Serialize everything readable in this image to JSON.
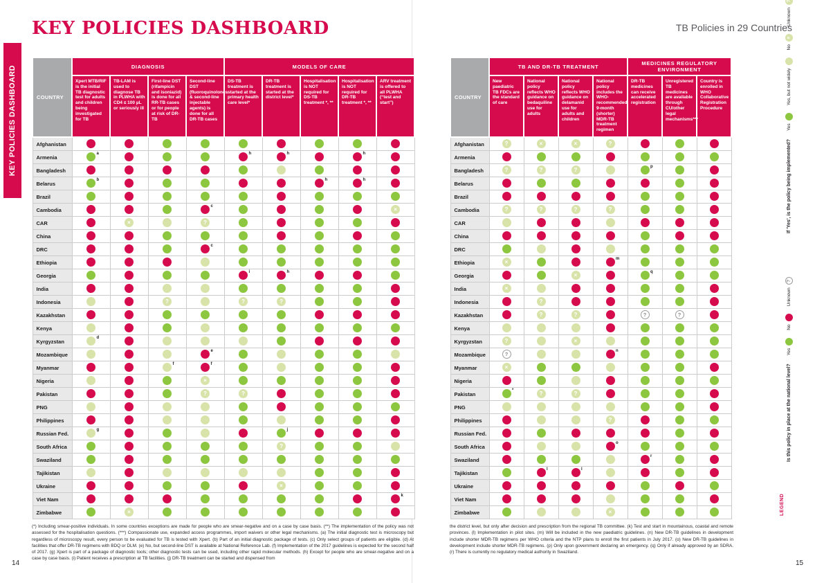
{
  "page": {
    "title": "KEY POLICIES DASHBOARD",
    "subtitle": "TB Policies in 29 Countries",
    "sidebar_label": "KEY POLICIES DASHBOARD",
    "page_number_left": "14",
    "page_number_right": "15"
  },
  "colors": {
    "crimson_no": "#d60b4e",
    "green_yes": "#8dc63f",
    "pale_green_partial": "#d7e3a8",
    "header_gray": "#a8aaac",
    "row_gray": "#e9e9e9"
  },
  "legend": {
    "label": "LEGEND",
    "implemented": {
      "question": "If 'Yes', is the policy being implemented?",
      "items": [
        {
          "code": "G",
          "label": "Yes"
        },
        {
          "code": "L",
          "label": "Yes, but not widely"
        },
        {
          "code": "LX",
          "label": "No"
        },
        {
          "code": "LQ",
          "label": "Unknown"
        }
      ]
    },
    "national": {
      "question": "Is this policy in place at the national level?",
      "items": [
        {
          "code": "G",
          "label": "Yes"
        },
        {
          "code": "R",
          "label": "No"
        },
        {
          "code": "Q",
          "label": "Unknown"
        }
      ]
    }
  },
  "left_table": {
    "country_header": "COUNTRY",
    "groups": [
      {
        "label": "DIAGNOSIS",
        "span": 4
      },
      {
        "label": "MODELS OF CARE",
        "span": 5
      }
    ],
    "columns": [
      "Xpert MTB/RIF is the initial TB diagnostic test for adults and children being investigated for TB",
      "TB-LAM is used to diagnose TB in PLWHA with CD4 ≤ 100 µL or seriously ill",
      "First-line DST (rifampicin and isoniazid) is done for all RR-TB cases or for people at risk of DR-TB",
      "Second-line DST (fluoroquinolones & second-line injectable agents) is done for all DR-TB cases",
      "DS-TB treatment is started at the primary health care level*",
      "DR-TB treatment is started at the district level*",
      "Hospitalisation is NOT required for DS-TB treatment *, **",
      "Hospitalisation is NOT required for DR-TB treatment *, **",
      "ARV treatment is offered to all PLWHA (“test and start”)"
    ],
    "rows": [
      {
        "country": "Afghanistan",
        "cells": [
          "R",
          "R",
          "G",
          "G",
          "G",
          "R",
          "G",
          "G",
          "R"
        ]
      },
      {
        "country": "Armenia",
        "cells": [
          "G:a",
          "R",
          "G",
          "G",
          "R:h",
          "R:h",
          "R",
          "R:h",
          "R"
        ]
      },
      {
        "country": "Bangladesh",
        "cells": [
          "R",
          "R",
          "R",
          "R",
          "G",
          "L",
          "G",
          "R",
          "R"
        ]
      },
      {
        "country": "Belarus",
        "cells": [
          "G:b",
          "R",
          "G",
          "G",
          "R",
          "R",
          "R:h",
          "R:h",
          "R"
        ]
      },
      {
        "country": "Brazil",
        "cells": [
          "G",
          "R",
          "G",
          "G",
          "G",
          "R",
          "G",
          "G",
          "G"
        ]
      },
      {
        "country": "Cambodia",
        "cells": [
          "R",
          "R",
          "G",
          "R:c",
          "G",
          "R",
          "G",
          "R",
          "LX"
        ]
      },
      {
        "country": "CAR",
        "cells": [
          "R",
          "LX",
          "L",
          "LQ",
          "G",
          "R",
          "G",
          "G",
          "R"
        ]
      },
      {
        "country": "China",
        "cells": [
          "R",
          "R",
          "G",
          "G",
          "G",
          "R",
          "G",
          "R",
          "G"
        ]
      },
      {
        "country": "DRC",
        "cells": [
          "R",
          "R",
          "G",
          "R:c",
          "G",
          "G",
          "G",
          "G",
          "G"
        ]
      },
      {
        "country": "Ethiopia",
        "cells": [
          "R",
          "R",
          "R",
          "L",
          "G",
          "G",
          "G",
          "G",
          "G"
        ]
      },
      {
        "country": "Georgia",
        "cells": [
          "G",
          "R",
          "G",
          "G",
          "R:i",
          "R:h",
          "R",
          "R",
          "G"
        ]
      },
      {
        "country": "India",
        "cells": [
          "R",
          "R",
          "L",
          "L",
          "G",
          "G",
          "G",
          "G",
          "R"
        ]
      },
      {
        "country": "Indonesia",
        "cells": [
          "L",
          "R",
          "LQ",
          "L",
          "LQ",
          "LQ",
          "G",
          "G",
          "R"
        ]
      },
      {
        "country": "Kazakhstan",
        "cells": [
          "R",
          "R",
          "G",
          "G",
          "G",
          "G",
          "R",
          "R",
          "R"
        ]
      },
      {
        "country": "Kenya",
        "cells": [
          "L",
          "R",
          "G",
          "L",
          "G",
          "G",
          "G",
          "G",
          "G"
        ]
      },
      {
        "country": "Kyrgyzstan",
        "cells": [
          "L:d",
          "R",
          "L",
          "L",
          "L",
          "G",
          "R",
          "R",
          "R"
        ]
      },
      {
        "country": "Mozambique",
        "cells": [
          "L",
          "R",
          "L",
          "R:e",
          "G",
          "L",
          "G",
          "G",
          "L"
        ]
      },
      {
        "country": "Myanmar",
        "cells": [
          "R",
          "R",
          "L:f",
          "R:f",
          "G",
          "L",
          "G",
          "G",
          "R"
        ]
      },
      {
        "country": "Nigeria",
        "cells": [
          "L",
          "R",
          "G",
          "LX",
          "G",
          "G",
          "G",
          "G",
          "R"
        ]
      },
      {
        "country": "Pakistan",
        "cells": [
          "R",
          "R",
          "G",
          "LQ",
          "LQ",
          "R",
          "G",
          "G",
          "R"
        ]
      },
      {
        "country": "PNG",
        "cells": [
          "L",
          "R",
          "L",
          "L",
          "G",
          "R",
          "G",
          "G",
          "G"
        ]
      },
      {
        "country": "Philippines",
        "cells": [
          "R",
          "R",
          "L",
          "L",
          "G",
          "L",
          "G",
          "G",
          "R"
        ]
      },
      {
        "country": "Russian Fed.",
        "cells": [
          "L:g",
          "R",
          "G",
          "L",
          "R",
          "G:j",
          "R",
          "R",
          "R"
        ]
      },
      {
        "country": "South Africa",
        "cells": [
          "G",
          "R",
          "G",
          "G",
          "G",
          "LQ",
          "G",
          "G",
          "L"
        ]
      },
      {
        "country": "Swaziland",
        "cells": [
          "G",
          "R",
          "G",
          "G",
          "G",
          "G",
          "G",
          "G",
          "G"
        ]
      },
      {
        "country": "Tajikistan",
        "cells": [
          "L",
          "R",
          "L",
          "L",
          "L",
          "L",
          "G",
          "G",
          "R"
        ]
      },
      {
        "country": "Ukraine",
        "cells": [
          "R",
          "R",
          "G",
          "G",
          "R",
          "LX",
          "G",
          "G",
          "R"
        ]
      },
      {
        "country": "Viet Nam",
        "cells": [
          "R",
          "R",
          "R",
          "G",
          "G",
          "G",
          "G",
          "R",
          "R:k"
        ]
      },
      {
        "country": "Zimbabwe",
        "cells": [
          "G",
          "LX",
          "G",
          "G",
          "G",
          "G",
          "G",
          "G",
          "R"
        ]
      }
    ]
  },
  "right_table": {
    "country_header": "COUNTRY",
    "groups": [
      {
        "label": "TB AND DR-TB TREATMENT",
        "span": 4
      },
      {
        "label": "MEDICINES REGULATORY ENVIRONMENT",
        "span": 3
      }
    ],
    "columns": [
      "New paediatric TB FDCs are the standard of care",
      "National policy reflects WHO guidance on bedaquiline use for adults",
      "National policy reflects WHO guidance on delamanid use for adults and children",
      "National policy includes the WHO-recommended, 9-month (shorter) MDR-TB treatment regimen",
      "DR-TB medicines can receive accelerated registration",
      "Unregistered TB medicines are available through CU/other legal mechanisms***",
      "Country is enrolled in WHO Collaborative Registration Procedure"
    ],
    "rows": [
      {
        "country": "Afghanistan",
        "cells": [
          "LQ",
          "LX",
          "LX",
          "LQ",
          "R",
          "G",
          "R"
        ]
      },
      {
        "country": "Armenia",
        "cells": [
          "R",
          "G",
          "G",
          "R",
          "G",
          "G",
          "G"
        ]
      },
      {
        "country": "Bangladesh",
        "cells": [
          "LQ",
          "LQ",
          "LQ",
          "L",
          "G:p",
          "G",
          "R"
        ]
      },
      {
        "country": "Belarus",
        "cells": [
          "R",
          "G",
          "G",
          "R",
          "R",
          "G",
          "R"
        ]
      },
      {
        "country": "Brazil",
        "cells": [
          "R",
          "R",
          "R",
          "R",
          "G",
          "G",
          "R"
        ]
      },
      {
        "country": "Cambodia",
        "cells": [
          "LQ",
          "LQ",
          "LQ",
          "LQ",
          "G",
          "G",
          "R"
        ]
      },
      {
        "country": "CAR",
        "cells": [
          "L",
          "R",
          "R",
          "L",
          "R",
          "R",
          "R"
        ]
      },
      {
        "country": "China",
        "cells": [
          "R",
          "R",
          "R",
          "R",
          "G",
          "R",
          "R"
        ]
      },
      {
        "country": "DRC",
        "cells": [
          "G",
          "L",
          "R",
          "L",
          "G",
          "G",
          "G"
        ]
      },
      {
        "country": "Ethiopia",
        "cells": [
          "LX",
          "G",
          "R",
          "R:m",
          "G",
          "G",
          "G"
        ]
      },
      {
        "country": "Georgia",
        "cells": [
          "R",
          "G",
          "LX",
          "R",
          "G:q",
          "G",
          "G"
        ]
      },
      {
        "country": "India",
        "cells": [
          "LX",
          "L",
          "R",
          "R",
          "G",
          "G",
          "R"
        ]
      },
      {
        "country": "Indonesia",
        "cells": [
          "R",
          "LQ",
          "R",
          "R",
          "G",
          "G",
          "R"
        ]
      },
      {
        "country": "Kazakhstan",
        "cells": [
          "R",
          "LQ",
          "LQ",
          "R",
          "Q",
          "Q",
          "R"
        ]
      },
      {
        "country": "Kenya",
        "cells": [
          "L",
          "L",
          "L",
          "R",
          "G",
          "G",
          "G"
        ]
      },
      {
        "country": "Kyrgyzstan",
        "cells": [
          "LQ",
          "L",
          "LX",
          "L",
          "G",
          "G",
          "G"
        ]
      },
      {
        "country": "Mozambique",
        "cells": [
          "Q",
          "L",
          "L",
          "R:n",
          "G",
          "G",
          "G"
        ]
      },
      {
        "country": "Myanmar",
        "cells": [
          "LX",
          "G",
          "G",
          "L",
          "G",
          "G",
          "R"
        ]
      },
      {
        "country": "Nigeria",
        "cells": [
          "R",
          "G",
          "L",
          "R",
          "G",
          "G",
          "G"
        ]
      },
      {
        "country": "Pakistan",
        "cells": [
          "G:*",
          "LQ",
          "LQ",
          "R",
          "G",
          "G",
          "R"
        ]
      },
      {
        "country": "PNG",
        "cells": [
          "L",
          "L",
          "L",
          "L",
          "G",
          "G",
          "R"
        ]
      },
      {
        "country": "Philippines",
        "cells": [
          "R",
          "L",
          "L",
          "LQ",
          "R",
          "G",
          "G"
        ]
      },
      {
        "country": "Russian Fed.",
        "cells": [
          "R",
          "G",
          "R",
          "R",
          "R",
          "G",
          "R"
        ]
      },
      {
        "country": "South Africa",
        "cells": [
          "R",
          "L",
          "L",
          "R:o",
          "G",
          "G",
          "G"
        ]
      },
      {
        "country": "Swaziland",
        "cells": [
          "R",
          "G",
          "G",
          "L",
          "R:r",
          "G",
          "R"
        ]
      },
      {
        "country": "Tajikistan",
        "cells": [
          "G",
          "R:l",
          "R:l",
          "L",
          "R",
          "G",
          "R"
        ]
      },
      {
        "country": "Ukraine",
        "cells": [
          "R",
          "R",
          "R",
          "R",
          "G",
          "R",
          "G"
        ]
      },
      {
        "country": "Viet Nam",
        "cells": [
          "R",
          "R",
          "R",
          "L",
          "G",
          "G",
          "R"
        ]
      },
      {
        "country": "Zimbabwe",
        "cells": [
          "G",
          "L",
          "L",
          "LX",
          "G",
          "G",
          "G"
        ]
      }
    ]
  },
  "footnotes": {
    "left": "(*) Including smear-positive individuals. In some countries exceptions are made for people who are smear-negative and on a case by case basis. (**) The implementation of the policy was not assessed for the hospitalisation questions. (***) Compassionate use, expanded access programmes, import waivers or other legal mechanisms. (a) The initial diagnostic test is microscopy but regardless of microscopy result, every person to be evaluated for TB is tested with Xpert. (b) Part of an initial diagnostic package of tests. (c) Only select groups of patients are eligible. (d) At facilities that offer DR-TB regimens with BDQ or DLM. (e) No, but second-line DST is available at National Reference Lab. (f) Implementation of the 2017 guidelines is expected for the second half of 2017. (g) Xpert is part of a package of diagnostic tools; other diagnostic tests can be used, including other rapid molecular methods. (h) Except for people who are smear-negative and on a case by case basis. (i) Patient receives a prescription at TB facilities. (j) DR-TB treatment can be started and dispensed from",
    "right": "the district level, but only after decision and prescription from the regional TB committee. (k) Test and start in mountainous, coastal and remote provinces. (l) Implementation in pilot sites. (m) Will be included in the new paediatric guidelines. (n) New DR-TB guidelines in development include shorter MDR-TB regimens per WHO criteria and the NTP plans to enroll the first patients in July 2017. (o) New DR-TB guidelines in development include shorter MDR-TB regimens. (p) Only upon government declaring an emergency. (q) Only if already approved by an SDRA. (r) There is currently no regulatory medical authority in Swaziland."
  }
}
